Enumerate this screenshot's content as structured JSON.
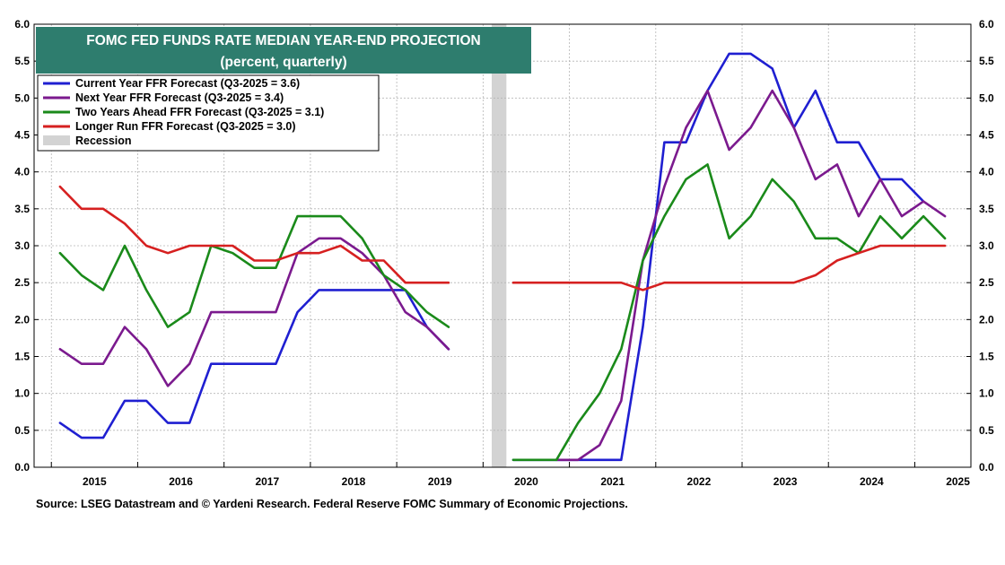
{
  "title_box": {
    "line1": "FOMC FED FUNDS RATE MEDIAN YEAR-END PROJECTION",
    "line2": "(percent, quarterly)",
    "bg_color": "#2e7d6e"
  },
  "source": "Source: LSEG Datastream and © Yardeni Research. Federal Reserve FOMC Summary of Economic Projections.",
  "chart_data": {
    "type": "line",
    "ylim": [
      0,
      6
    ],
    "yticks": [
      "0.0",
      "0.5",
      "1.0",
      "1.5",
      "2.0",
      "2.5",
      "3.0",
      "3.5",
      "4.0",
      "4.5",
      "5.0",
      "5.5",
      "6.0"
    ],
    "xlim": [
      2014.7,
      2025.55
    ],
    "xticks": [
      "2015",
      "2016",
      "2017",
      "2018",
      "2019",
      "2020",
      "2021",
      "2022",
      "2023",
      "2024",
      "2025"
    ],
    "grid": true,
    "legend_position": "top-left",
    "recession": {
      "start": 2020.0,
      "end": 2020.17,
      "color": "#d3d3d3",
      "label": "Recession"
    },
    "series": [
      {
        "name": "Current Year FFR Forecast (Q3-2025 = 3.6)",
        "color": "#1f1fd1",
        "segments": [
          [
            [
              2015.0,
              0.6
            ],
            [
              2015.25,
              0.4
            ],
            [
              2015.5,
              0.4
            ],
            [
              2015.75,
              0.9
            ],
            [
              2016.0,
              0.9
            ],
            [
              2016.25,
              0.6
            ],
            [
              2016.5,
              0.6
            ],
            [
              2016.75,
              1.4
            ],
            [
              2017.0,
              1.4
            ],
            [
              2017.25,
              1.4
            ],
            [
              2017.5,
              1.4
            ],
            [
              2017.75,
              2.1
            ],
            [
              2018.0,
              2.4
            ],
            [
              2018.25,
              2.4
            ],
            [
              2018.5,
              2.4
            ],
            [
              2018.75,
              2.4
            ],
            [
              2019.0,
              2.4
            ],
            [
              2019.25,
              1.9
            ],
            [
              2019.5,
              1.6
            ]
          ],
          [
            [
              2020.25,
              0.1
            ],
            [
              2020.5,
              0.1
            ],
            [
              2020.75,
              0.1
            ],
            [
              2021.0,
              0.1
            ],
            [
              2021.25,
              0.1
            ],
            [
              2021.5,
              0.1
            ],
            [
              2021.75,
              1.9
            ],
            [
              2022.0,
              4.4
            ],
            [
              2022.25,
              4.4
            ],
            [
              2022.5,
              5.1
            ],
            [
              2022.75,
              5.6
            ],
            [
              2023.0,
              5.6
            ],
            [
              2023.25,
              5.4
            ],
            [
              2023.5,
              4.6
            ],
            [
              2023.75,
              5.1
            ],
            [
              2024.0,
              4.4
            ],
            [
              2024.25,
              4.4
            ],
            [
              2024.5,
              3.9
            ],
            [
              2024.75,
              3.9
            ],
            [
              2025.0,
              3.6
            ]
          ]
        ]
      },
      {
        "name": "Next Year FFR Forecast (Q3-2025 = 3.4)",
        "color": "#7b1a8e",
        "segments": [
          [
            [
              2015.0,
              1.6
            ],
            [
              2015.25,
              1.4
            ],
            [
              2015.5,
              1.4
            ],
            [
              2015.75,
              1.9
            ],
            [
              2016.0,
              1.6
            ],
            [
              2016.25,
              1.1
            ],
            [
              2016.5,
              1.4
            ],
            [
              2016.75,
              2.1
            ],
            [
              2017.0,
              2.1
            ],
            [
              2017.25,
              2.1
            ],
            [
              2017.5,
              2.1
            ],
            [
              2017.75,
              2.9
            ],
            [
              2018.0,
              3.1
            ],
            [
              2018.25,
              3.1
            ],
            [
              2018.5,
              2.9
            ],
            [
              2018.75,
              2.6
            ],
            [
              2019.0,
              2.1
            ],
            [
              2019.25,
              1.9
            ],
            [
              2019.5,
              1.6
            ]
          ],
          [
            [
              2020.75,
              0.1
            ],
            [
              2021.0,
              0.1
            ],
            [
              2021.25,
              0.3
            ],
            [
              2021.5,
              0.9
            ],
            [
              2021.75,
              2.8
            ],
            [
              2022.0,
              3.8
            ],
            [
              2022.25,
              4.6
            ],
            [
              2022.5,
              5.1
            ],
            [
              2022.75,
              4.3
            ],
            [
              2023.0,
              4.6
            ],
            [
              2023.25,
              5.1
            ],
            [
              2023.5,
              4.6
            ],
            [
              2023.75,
              3.9
            ],
            [
              2024.0,
              4.1
            ],
            [
              2024.25,
              3.4
            ],
            [
              2024.5,
              3.9
            ],
            [
              2024.75,
              3.4
            ],
            [
              2025.0,
              3.6
            ],
            [
              2025.25,
              3.4
            ]
          ]
        ]
      },
      {
        "name": "Two Years Ahead FFR Forecast (Q3-2025 = 3.1)",
        "color": "#1a8a1a",
        "segments": [
          [
            [
              2015.0,
              2.9
            ],
            [
              2015.25,
              2.6
            ],
            [
              2015.5,
              2.4
            ],
            [
              2015.75,
              3.0
            ],
            [
              2016.0,
              2.4
            ],
            [
              2016.25,
              1.9
            ],
            [
              2016.5,
              2.1
            ],
            [
              2016.75,
              3.0
            ],
            [
              2017.0,
              2.9
            ],
            [
              2017.25,
              2.7
            ],
            [
              2017.5,
              2.7
            ],
            [
              2017.75,
              3.4
            ],
            [
              2018.0,
              3.4
            ],
            [
              2018.25,
              3.4
            ],
            [
              2018.5,
              3.1
            ],
            [
              2018.75,
              2.6
            ],
            [
              2019.0,
              2.4
            ],
            [
              2019.25,
              2.1
            ],
            [
              2019.5,
              1.9
            ]
          ],
          [
            [
              2020.25,
              0.1
            ],
            [
              2020.5,
              0.1
            ],
            [
              2020.75,
              0.1
            ],
            [
              2021.0,
              0.6
            ],
            [
              2021.25,
              1.0
            ],
            [
              2021.5,
              1.6
            ],
            [
              2021.75,
              2.8
            ],
            [
              2022.0,
              3.4
            ],
            [
              2022.25,
              3.9
            ],
            [
              2022.5,
              4.1
            ],
            [
              2022.75,
              3.1
            ],
            [
              2023.0,
              3.4
            ],
            [
              2023.25,
              3.9
            ],
            [
              2023.5,
              3.6
            ],
            [
              2023.75,
              3.1
            ],
            [
              2024.0,
              3.1
            ],
            [
              2024.25,
              2.9
            ],
            [
              2024.5,
              3.4
            ],
            [
              2024.75,
              3.1
            ],
            [
              2025.0,
              3.4
            ],
            [
              2025.25,
              3.1
            ]
          ]
        ]
      },
      {
        "name": "Longer Run FFR Forecast (Q3-2025 = 3.0)",
        "color": "#d62020",
        "segments": [
          [
            [
              2015.0,
              3.8
            ],
            [
              2015.25,
              3.5
            ],
            [
              2015.5,
              3.5
            ],
            [
              2015.75,
              3.3
            ],
            [
              2016.0,
              3.0
            ],
            [
              2016.25,
              2.9
            ],
            [
              2016.5,
              3.0
            ],
            [
              2016.75,
              3.0
            ],
            [
              2017.0,
              3.0
            ],
            [
              2017.25,
              2.8
            ],
            [
              2017.5,
              2.8
            ],
            [
              2017.75,
              2.9
            ],
            [
              2018.0,
              2.9
            ],
            [
              2018.25,
              3.0
            ],
            [
              2018.5,
              2.8
            ],
            [
              2018.75,
              2.8
            ],
            [
              2019.0,
              2.5
            ],
            [
              2019.25,
              2.5
            ],
            [
              2019.5,
              2.5
            ]
          ],
          [
            [
              2020.25,
              2.5
            ],
            [
              2020.5,
              2.5
            ],
            [
              2020.75,
              2.5
            ],
            [
              2021.0,
              2.5
            ],
            [
              2021.25,
              2.5
            ],
            [
              2021.5,
              2.5
            ],
            [
              2021.75,
              2.4
            ],
            [
              2022.0,
              2.5
            ],
            [
              2022.25,
              2.5
            ],
            [
              2022.5,
              2.5
            ],
            [
              2022.75,
              2.5
            ],
            [
              2023.0,
              2.5
            ],
            [
              2023.25,
              2.5
            ],
            [
              2023.5,
              2.5
            ],
            [
              2023.75,
              2.6
            ],
            [
              2024.0,
              2.8
            ],
            [
              2024.25,
              2.9
            ],
            [
              2024.5,
              3.0
            ],
            [
              2024.75,
              3.0
            ],
            [
              2025.0,
              3.0
            ],
            [
              2025.25,
              3.0
            ]
          ]
        ]
      }
    ]
  }
}
